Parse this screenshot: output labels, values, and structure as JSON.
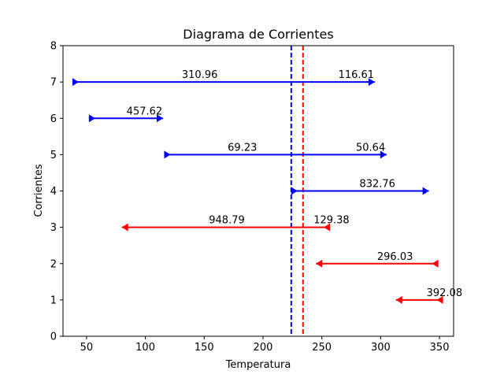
{
  "chart_data": {
    "type": "line",
    "title": "Diagrama de Corrientes",
    "xlabel": "Temperatura",
    "ylabel": "Corrientes",
    "xlim": [
      30,
      362
    ],
    "ylim": [
      0,
      8
    ],
    "xticks": [
      50,
      100,
      150,
      200,
      250,
      300,
      350
    ],
    "yticks": [
      0,
      1,
      2,
      3,
      4,
      5,
      6,
      7,
      8
    ],
    "grid": false,
    "colors": {
      "blue": "#0000ff",
      "red": "#ff0000"
    },
    "vlines": [
      {
        "x": 224,
        "color": "#0000ff",
        "style": "dashed"
      },
      {
        "x": 234,
        "color": "#ff0000",
        "style": "dashed"
      }
    ],
    "streams": [
      {
        "y": 7,
        "x_start": 38,
        "x_end": 295,
        "color": "#0000ff",
        "direction": "right",
        "labels": [
          {
            "text": "310.96",
            "x": 131
          },
          {
            "text": "116.61",
            "x": 264
          }
        ]
      },
      {
        "y": 6,
        "x_start": 52,
        "x_end": 115,
        "color": "#0000ff",
        "direction": "right",
        "labels": [
          {
            "text": "457.62",
            "x": 84
          }
        ]
      },
      {
        "y": 5,
        "x_start": 116,
        "x_end": 305,
        "color": "#0000ff",
        "direction": "right",
        "labels": [
          {
            "text": "69.23",
            "x": 170
          },
          {
            "text": "50.64",
            "x": 279
          }
        ]
      },
      {
        "y": 4,
        "x_start": 224,
        "x_end": 341,
        "color": "#0000ff",
        "direction": "right",
        "labels": [
          {
            "text": "832.76",
            "x": 282
          }
        ]
      },
      {
        "y": 3,
        "x_start": 257,
        "x_end": 80,
        "color": "#ff0000",
        "direction": "left",
        "labels": [
          {
            "text": "948.79",
            "x": 154
          },
          {
            "text": "129.38",
            "x": 243
          }
        ]
      },
      {
        "y": 2,
        "x_start": 349,
        "x_end": 245,
        "color": "#ff0000",
        "direction": "left",
        "labels": [
          {
            "text": "296.03",
            "x": 297
          }
        ]
      },
      {
        "y": 1,
        "x_start": 353,
        "x_end": 313,
        "color": "#ff0000",
        "direction": "left",
        "labels": [
          {
            "text": "392.08",
            "x": 339
          }
        ]
      }
    ]
  }
}
